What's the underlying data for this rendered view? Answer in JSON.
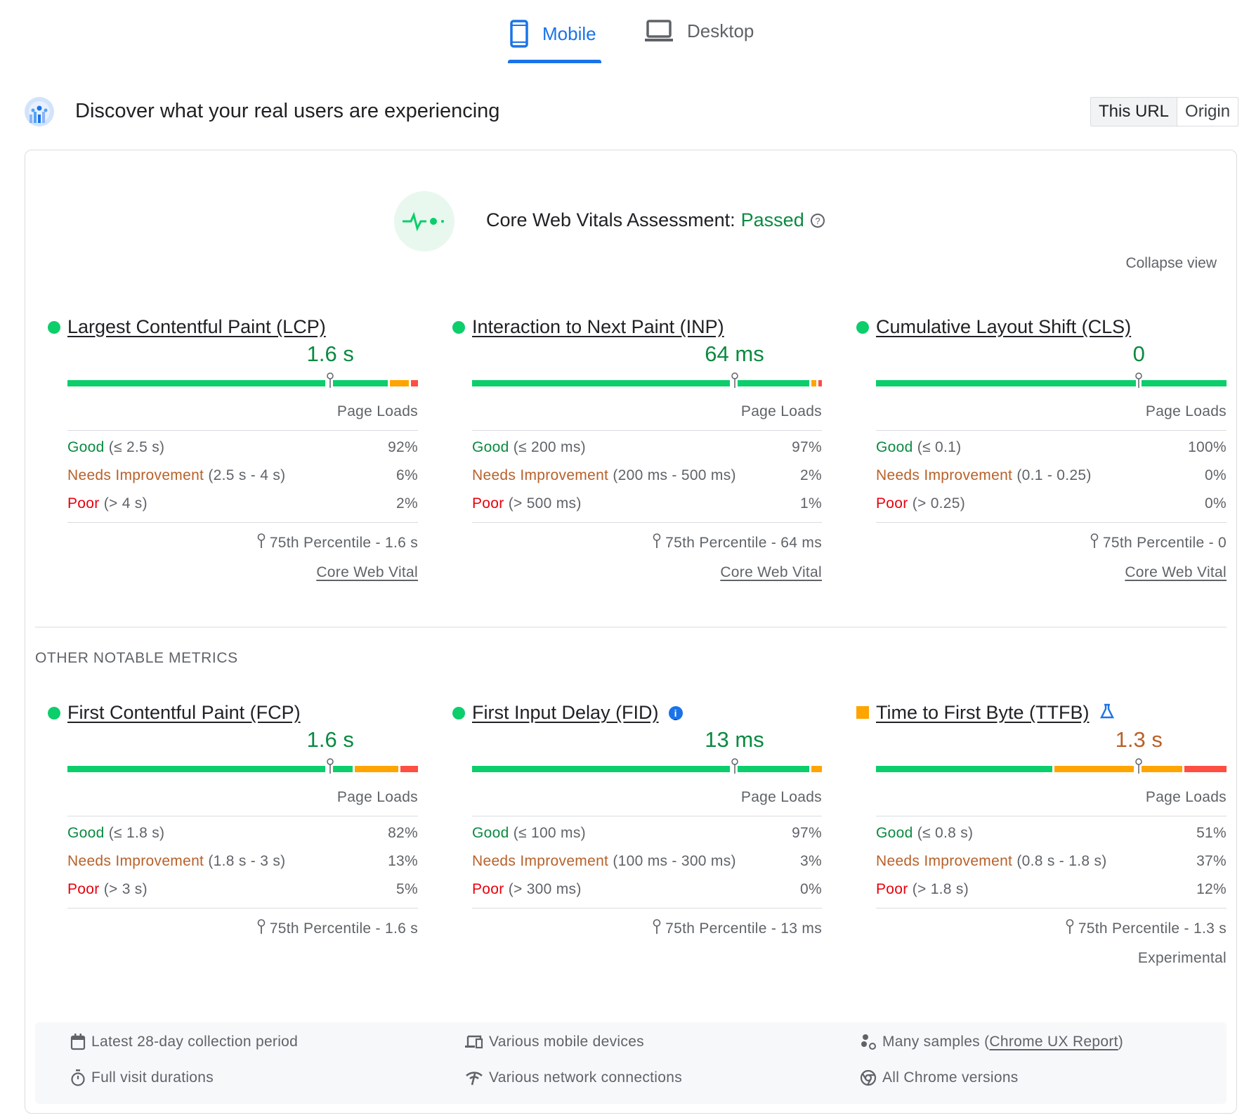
{
  "tabs": [
    {
      "label": "Mobile",
      "icon": "smartphone-icon",
      "active": true
    },
    {
      "label": "Desktop",
      "icon": "laptop-icon",
      "active": false
    }
  ],
  "header": {
    "title": "Discover what your real users are experiencing",
    "toggle": [
      "This URL",
      "Origin"
    ],
    "selected": "This URL"
  },
  "assessment": {
    "label": "Core Web Vitals Assessment:",
    "status": "Passed",
    "collapse": "Collapse view"
  },
  "colors": {
    "good": "#0cce6b",
    "average": "#ffa400",
    "poor": "#ff4e42",
    "accent": "#1a73e8"
  },
  "core_metrics": [
    {
      "title": "Largest Contentful Paint (LCP)",
      "status": "good",
      "value": "1.6 s",
      "page_loads": "Page Loads",
      "rows": [
        {
          "label": "Good",
          "range": "(≤ 2.5 s)",
          "pct": "92%"
        },
        {
          "label": "Needs Improvement",
          "range": "(2.5 s - 4 s)",
          "pct": "6%"
        },
        {
          "label": "Poor",
          "range": "(> 4 s)",
          "pct": "2%"
        }
      ],
      "dist": [
        92,
        6,
        2
      ],
      "p75": "75th Percentile - 1.6 s",
      "footer": "Core Web Vital"
    },
    {
      "title": "Interaction to Next Paint (INP)",
      "status": "good",
      "value": "64 ms",
      "page_loads": "Page Loads",
      "rows": [
        {
          "label": "Good",
          "range": "(≤ 200 ms)",
          "pct": "97%"
        },
        {
          "label": "Needs Improvement",
          "range": "(200 ms - 500 ms)",
          "pct": "2%"
        },
        {
          "label": "Poor",
          "range": "(> 500 ms)",
          "pct": "1%"
        }
      ],
      "dist": [
        97,
        2,
        1
      ],
      "p75": "75th Percentile - 64 ms",
      "footer": "Core Web Vital"
    },
    {
      "title": "Cumulative Layout Shift (CLS)",
      "status": "good",
      "value": "0",
      "page_loads": "Page Loads",
      "rows": [
        {
          "label": "Good",
          "range": "(≤ 0.1)",
          "pct": "100%"
        },
        {
          "label": "Needs Improvement",
          "range": "(0.1 - 0.25)",
          "pct": "0%"
        },
        {
          "label": "Poor",
          "range": "(> 0.25)",
          "pct": "0%"
        }
      ],
      "dist": [
        100,
        0,
        0
      ],
      "p75": "75th Percentile - 0",
      "footer": "Core Web Vital"
    }
  ],
  "other_title": "OTHER NOTABLE METRICS",
  "other_metrics": [
    {
      "title": "First Contentful Paint (FCP)",
      "status": "good",
      "value": "1.6 s",
      "page_loads": "Page Loads",
      "rows": [
        {
          "label": "Good",
          "range": "(≤ 1.8 s)",
          "pct": "82%"
        },
        {
          "label": "Needs Improvement",
          "range": "(1.8 s - 3 s)",
          "pct": "13%"
        },
        {
          "label": "Poor",
          "range": "(> 3 s)",
          "pct": "5%"
        }
      ],
      "dist": [
        82,
        13,
        5
      ],
      "p75": "75th Percentile - 1.6 s"
    },
    {
      "title": "First Input Delay (FID)",
      "status": "good",
      "value": "13 ms",
      "badge": "info-icon",
      "page_loads": "Page Loads",
      "rows": [
        {
          "label": "Good",
          "range": "(≤ 100 ms)",
          "pct": "97%"
        },
        {
          "label": "Needs Improvement",
          "range": "(100 ms - 300 ms)",
          "pct": "3%"
        },
        {
          "label": "Poor",
          "range": "(> 300 ms)",
          "pct": "0%"
        }
      ],
      "dist": [
        97,
        3,
        0
      ],
      "p75": "75th Percentile - 13 ms"
    },
    {
      "title": "Time to First Byte (TTFB)",
      "status": "average",
      "value": "1.3 s",
      "badge": "flask-icon",
      "page_loads": "Page Loads",
      "rows": [
        {
          "label": "Good",
          "range": "(≤ 0.8 s)",
          "pct": "51%"
        },
        {
          "label": "Needs Improvement",
          "range": "(0.8 s - 1.8 s)",
          "pct": "37%"
        },
        {
          "label": "Poor",
          "range": "(> 1.8 s)",
          "pct": "12%"
        }
      ],
      "dist": [
        51,
        37,
        12
      ],
      "p75": "75th Percentile - 1.3 s",
      "footer": "Experimental"
    }
  ],
  "footer": {
    "period": "Latest 28-day collection period",
    "devices": "Various mobile devices",
    "samples_prefix": "Many samples (",
    "samples_link": "Chrome UX Report",
    "samples_suffix": ")",
    "durations": "Full visit durations",
    "network": "Various network connections",
    "versions": "All Chrome versions"
  }
}
